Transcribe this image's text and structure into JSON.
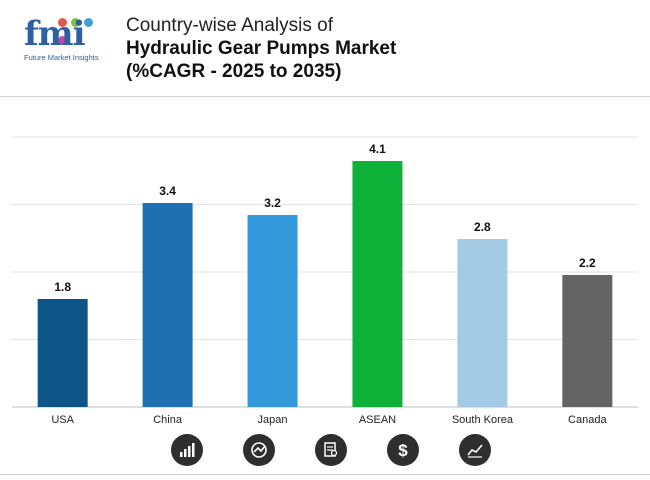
{
  "header": {
    "logo_text": "fmi",
    "logo_sub": "Future Market Insights",
    "title_line1": "Country-wise Analysis of",
    "title_line2": "Hydraulic Gear Pumps Market",
    "title_line3": "(%CAGR - 2025 to 2035)"
  },
  "icons": [
    "bar-chart-icon",
    "gauge-icon",
    "document-search-icon",
    "dollar-icon",
    "line-trend-icon"
  ],
  "chart_data": {
    "type": "bar",
    "categories": [
      "USA",
      "China",
      "Japan",
      "ASEAN",
      "South Korea",
      "Canada"
    ],
    "values": [
      1.8,
      3.4,
      3.2,
      4.1,
      2.8,
      2.2
    ],
    "colors": [
      "#0d5488",
      "#1e70b0",
      "#3399db",
      "#0eb238",
      "#a5cae3",
      "#646464"
    ],
    "ylim": [
      0,
      4.5
    ],
    "grid": true,
    "legend": "none"
  }
}
